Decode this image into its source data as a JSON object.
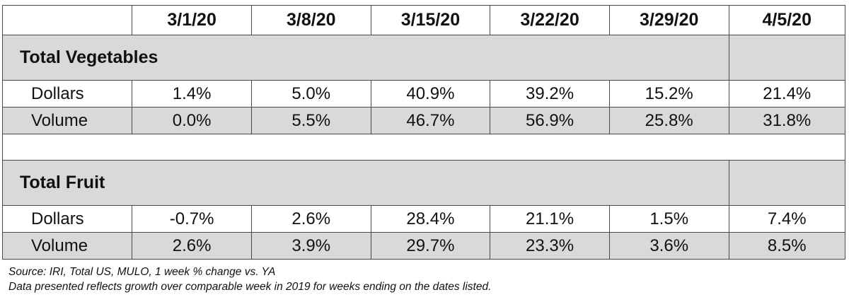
{
  "table": {
    "corner": "",
    "dates": [
      "3/1/20",
      "3/8/20",
      "3/15/20",
      "3/22/20",
      "3/29/20",
      "4/5/20"
    ],
    "sections": [
      {
        "title": "Total Vegetables",
        "rows": [
          {
            "label": "Dollars",
            "values": [
              "1.4%",
              "5.0%",
              "40.9%",
              "39.2%",
              "15.2%",
              "21.4%"
            ]
          },
          {
            "label": "Volume",
            "values": [
              "0.0%",
              "5.5%",
              "46.7%",
              "56.9%",
              "25.8%",
              "31.8%"
            ]
          }
        ]
      },
      {
        "title": "Total Fruit",
        "rows": [
          {
            "label": "Dollars",
            "values": [
              "-0.7%",
              "2.6%",
              "28.4%",
              "21.1%",
              "1.5%",
              "7.4%"
            ]
          },
          {
            "label": "Volume",
            "values": [
              "2.6%",
              "3.9%",
              "29.7%",
              "23.3%",
              "3.6%",
              "8.5%"
            ]
          }
        ]
      }
    ]
  },
  "notes": {
    "source": "Source: IRI, Total US, MULO, 1 week % change vs. YA",
    "description": "Data presented reflects growth over comparable week in 2019 for weeks ending on the dates listed."
  }
}
